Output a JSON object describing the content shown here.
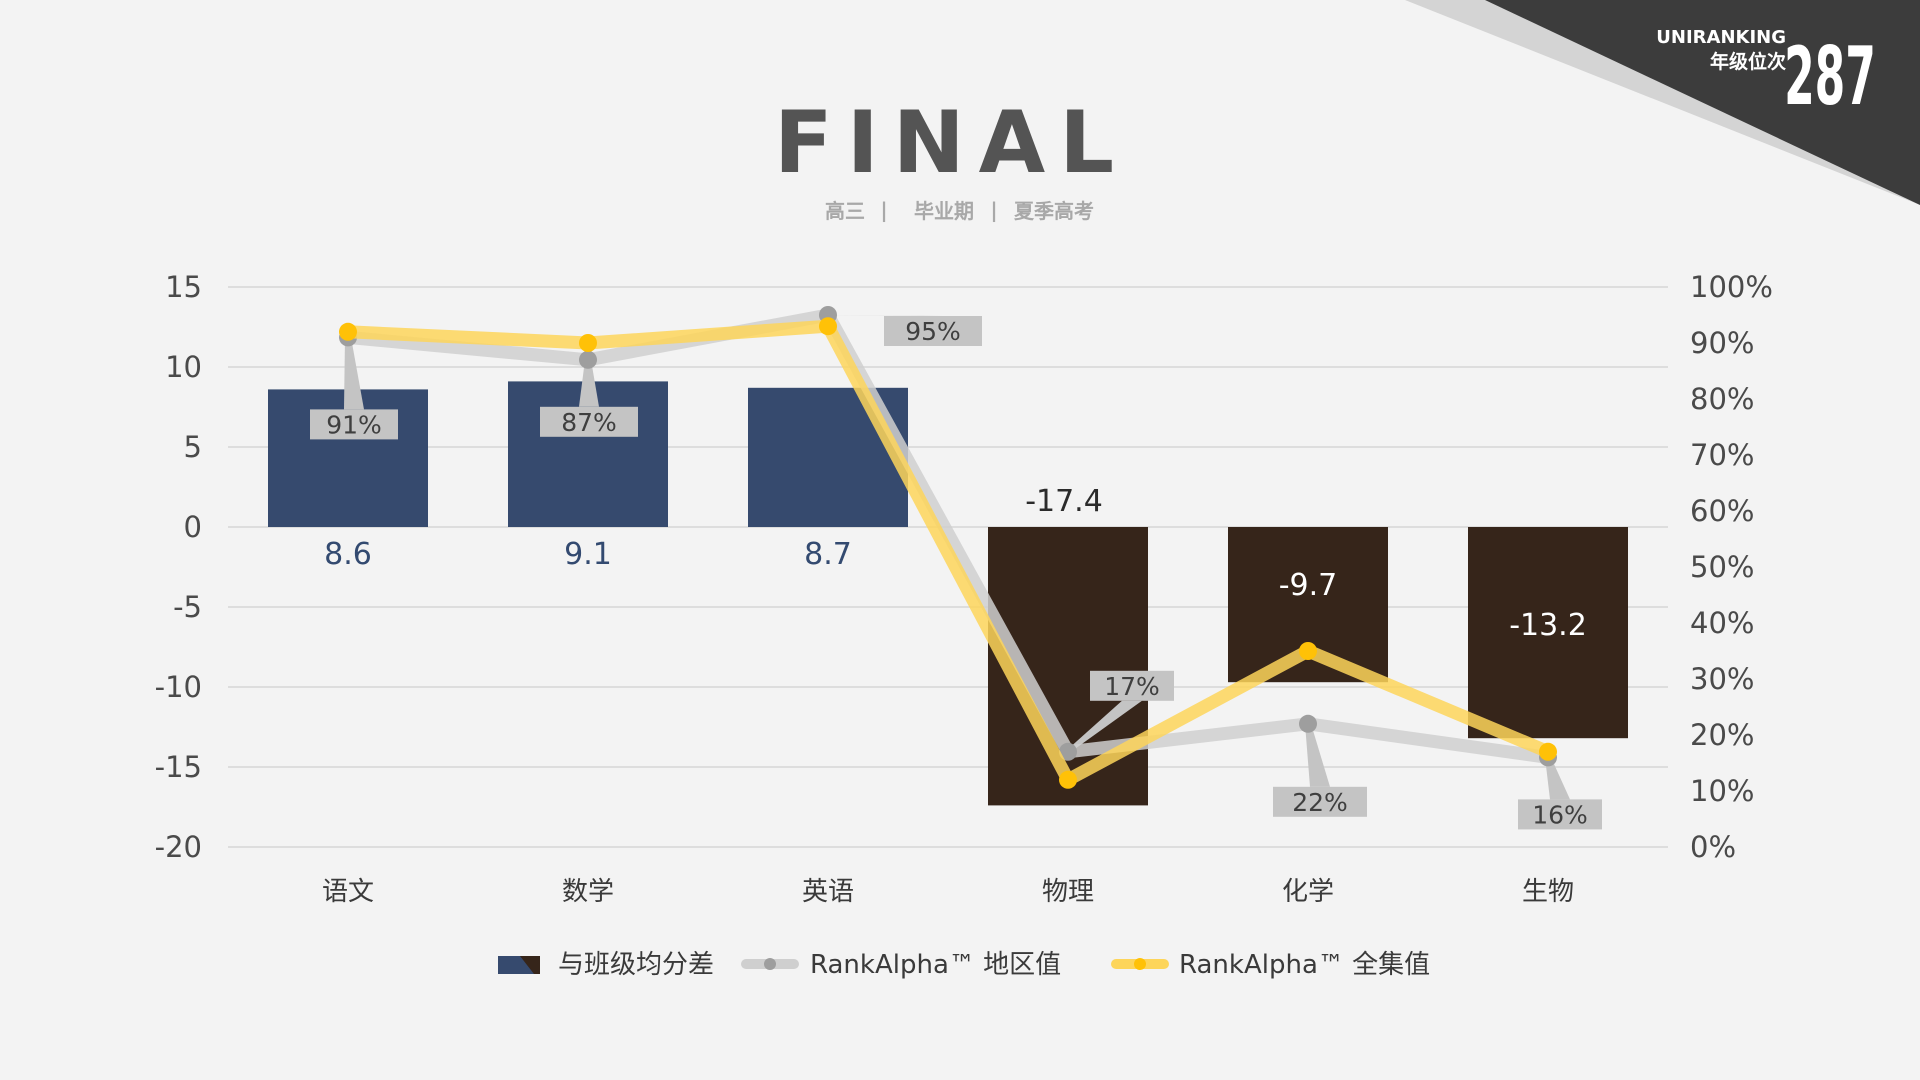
{
  "header": {
    "title": "FINAL",
    "subtitle_parts": [
      "高三",
      "毕业期",
      "夏季高考"
    ],
    "separator": "|"
  },
  "badge": {
    "brand": "UNIRANKING",
    "label": "年级位次",
    "value": "287"
  },
  "colors": {
    "bar_positive": "#364a6e",
    "bar_negative": "#36251a",
    "line_regional": "#cfcfcf",
    "marker_regional": "#9e9e9e",
    "line_full": "#fdd55a",
    "marker_full": "#ffc107",
    "corner_dark": "#3c3c3c",
    "corner_light": "#d4d4d4",
    "callout_bg": "#c4c4c4"
  },
  "chart_data": {
    "type": "bar",
    "categories": [
      "语文",
      "数学",
      "英语",
      "物理",
      "化学",
      "生物"
    ],
    "bar_values": [
      8.6,
      9.1,
      8.7,
      -17.4,
      -9.7,
      -13.2
    ],
    "bar_labels": [
      "8.6",
      "9.1",
      "8.7",
      "-17.4",
      "-9.7",
      "-13.2"
    ],
    "y_left": {
      "min": -20,
      "max": 15,
      "ticks": [
        15,
        10,
        5,
        0,
        -5,
        -10,
        -15,
        -20
      ],
      "tick_labels": [
        "15",
        "10",
        "5",
        "0",
        "-5",
        "-10",
        "-15",
        "-20"
      ]
    },
    "y_right": {
      "min": 0,
      "max": 100,
      "ticks": [
        100,
        90,
        80,
        70,
        60,
        50,
        40,
        30,
        20,
        10,
        0
      ],
      "tick_labels": [
        "100%",
        "90%",
        "80%",
        "70%",
        "60%",
        "50%",
        "40%",
        "30%",
        "20%",
        "10%",
        "0%"
      ]
    },
    "series": [
      {
        "name": "与班级均分差",
        "kind": "bar",
        "values": [
          8.6,
          9.1,
          8.7,
          -17.4,
          -9.7,
          -13.2
        ]
      },
      {
        "name": "RankAlpha™ 地区值",
        "kind": "line",
        "axis": "right",
        "values": [
          91,
          87,
          95,
          17,
          22,
          16
        ],
        "labels": [
          "91%",
          "87%",
          "95%",
          "17%",
          "22%",
          "16%"
        ]
      },
      {
        "name": "RankAlpha™ 全集值",
        "kind": "line",
        "axis": "right",
        "values": [
          92,
          90,
          93,
          12,
          35,
          17
        ]
      }
    ],
    "grid": true,
    "legend_position": "bottom-center"
  }
}
